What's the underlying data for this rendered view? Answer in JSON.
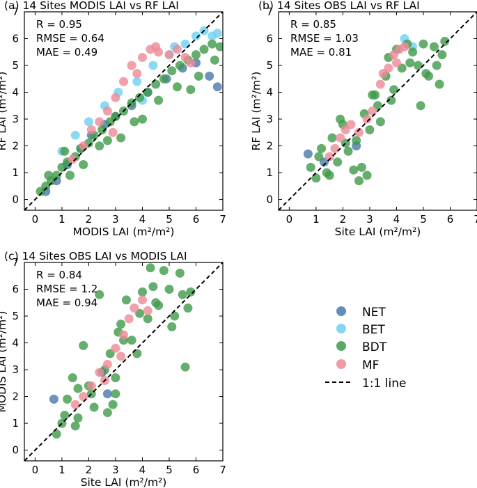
{
  "colors": {
    "NET": "#4a79ad",
    "BET": "#6fcff0",
    "BDT": "#3f9a4a",
    "MF": "#ec8a96",
    "one_to_one": "#000000"
  },
  "legend": {
    "entries": [
      "NET",
      "BET",
      "BDT",
      "MF"
    ],
    "line_label": "1:1 line"
  },
  "chart_data": [
    {
      "type": "scatter",
      "title": "(a) 14 Sites MODIS LAI vs RF LAI",
      "xlabel": "MODIS LAI (m²/m²)",
      "ylabel": "RF LAI (m²/m²)",
      "xlim": [
        -0.4,
        7
      ],
      "ylim": [
        -0.4,
        7
      ],
      "ticks": [
        0,
        1,
        2,
        3,
        4,
        5,
        6,
        7
      ],
      "stats": [
        "R = 0.95",
        "RMSE = 0.64",
        "MAE = 0.49"
      ],
      "series": [
        {
          "name": "NET",
          "x": [
            0.4,
            0.8,
            1.2,
            1.7,
            2.1,
            2.6,
            3.0,
            3.6,
            4.2,
            4.9,
            5.5,
            6.0,
            6.5,
            6.8
          ],
          "y": [
            0.3,
            0.7,
            1.3,
            1.9,
            2.4,
            2.8,
            3.1,
            3.5,
            4.0,
            4.5,
            4.9,
            5.1,
            4.6,
            4.2
          ]
        },
        {
          "name": "BET",
          "x": [
            1.0,
            1.5,
            2.0,
            2.6,
            3.1,
            3.8,
            4.4,
            5.0,
            5.6,
            6.0,
            6.3,
            6.6,
            6.8,
            5.2,
            4.0
          ],
          "y": [
            1.8,
            2.4,
            2.9,
            3.5,
            4.0,
            4.4,
            5.0,
            5.4,
            5.8,
            6.1,
            6.3,
            6.1,
            6.2,
            5.7,
            3.7
          ]
        },
        {
          "name": "BDT",
          "x": [
            0.2,
            0.4,
            0.6,
            0.8,
            1.0,
            1.2,
            1.5,
            1.7,
            2.0,
            2.2,
            2.5,
            2.8,
            3.0,
            3.3,
            3.6,
            3.9,
            4.2,
            4.5,
            4.8,
            5.1,
            5.4,
            5.7,
            6.0,
            6.3,
            6.6,
            6.9,
            1.3,
            1.8,
            2.4,
            3.2,
            4.0,
            4.6,
            5.3,
            6.1,
            6.7,
            0.5,
            1.1,
            2.7,
            3.7,
            5.8
          ],
          "y": [
            0.3,
            0.5,
            0.7,
            0.9,
            1.2,
            1.4,
            1.6,
            1.9,
            2.1,
            2.4,
            2.6,
            2.9,
            3.1,
            3.3,
            3.6,
            3.8,
            4.0,
            4.3,
            4.5,
            4.8,
            5.0,
            5.2,
            5.4,
            5.6,
            5.8,
            5.7,
            0.9,
            1.3,
            2.0,
            2.3,
            3.0,
            3.7,
            4.2,
            4.6,
            5.2,
            0.9,
            1.8,
            2.2,
            2.9,
            4.1
          ]
        },
        {
          "name": "MF",
          "x": [
            1.4,
            1.8,
            2.1,
            2.4,
            2.7,
            3.0,
            3.3,
            3.6,
            4.0,
            4.3,
            4.6,
            5.0,
            5.3,
            5.6,
            3.8,
            4.5,
            5.8,
            2.9
          ],
          "y": [
            1.5,
            2.0,
            2.6,
            2.9,
            3.3,
            3.8,
            4.4,
            5.0,
            5.3,
            5.6,
            5.5,
            5.4,
            5.6,
            5.3,
            4.7,
            5.7,
            5.1,
            2.5
          ]
        }
      ]
    },
    {
      "type": "scatter",
      "title": "(b) 14 Sites OBS LAI vs RF LAI",
      "xlabel": "Site LAI (m²/m²)",
      "ylabel": "RF LAI (m²/m²)",
      "xlim": [
        -0.4,
        7
      ],
      "ylim": [
        -0.4,
        7
      ],
      "ticks": [
        0,
        1,
        2,
        3,
        4,
        5,
        6,
        7
      ],
      "stats": [
        "R = 0.85",
        "RMSE = 1.03",
        "MAE = 0.81"
      ],
      "series": [
        {
          "name": "NET",
          "x": [
            0.7,
            2.5,
            1.3
          ],
          "y": [
            1.7,
            2.0,
            1.4
          ]
        },
        {
          "name": "BET",
          "x": [
            4.3,
            4.6
          ],
          "y": [
            6.0,
            5.7
          ]
        },
        {
          "name": "BDT",
          "x": [
            0.8,
            1.0,
            1.2,
            1.4,
            1.6,
            1.8,
            2.0,
            2.2,
            2.4,
            2.6,
            2.8,
            3.0,
            3.2,
            3.4,
            3.6,
            3.8,
            4.0,
            4.2,
            4.4,
            4.6,
            4.8,
            5.0,
            5.2,
            5.4,
            5.6,
            5.8,
            1.1,
            1.5,
            2.1,
            2.7,
            3.3,
            3.9,
            4.5,
            5.1,
            5.7,
            2.9,
            3.1,
            2.5,
            1.9,
            4.9,
            5.5,
            3.7
          ],
          "y": [
            1.2,
            0.8,
            1.9,
            1.0,
            2.3,
            1.4,
            2.8,
            1.8,
            1.1,
            0.7,
            3.2,
            2.6,
            3.9,
            2.9,
            4.6,
            3.7,
            5.6,
            4.9,
            5.8,
            5.5,
            5.0,
            5.8,
            4.6,
            5.7,
            4.3,
            5.9,
            1.6,
            0.9,
            2.1,
            1.2,
            3.5,
            4.1,
            5.1,
            4.7,
            5.4,
            0.9,
            3.9,
            2.2,
            3.0,
            3.5,
            5.0,
            5.3
          ]
        },
        {
          "name": "MF",
          "x": [
            1.5,
            1.7,
            1.9,
            2.1,
            2.3,
            2.6,
            2.9,
            3.1,
            3.4,
            3.7,
            3.9,
            4.1,
            4.3,
            3.5,
            4.0
          ],
          "y": [
            1.6,
            1.9,
            2.3,
            2.6,
            2.8,
            2.5,
            3.0,
            3.3,
            4.3,
            4.9,
            5.4,
            5.6,
            5.7,
            4.7,
            5.1
          ]
        }
      ]
    },
    {
      "type": "scatter",
      "title": "(c) 14 Sites OBS LAI vs MODIS LAI",
      "xlabel": "Site LAI (m²/m²)",
      "ylabel": "MODIS LAI (m²/m²)",
      "xlim": [
        -0.4,
        7
      ],
      "ylim": [
        -0.4,
        7
      ],
      "ticks": [
        0,
        1,
        2,
        3,
        4,
        5,
        6,
        7
      ],
      "stats": [
        "R = 0.84",
        "RMSE = 1.2",
        "MAE = 0.94"
      ],
      "series": [
        {
          "name": "NET",
          "x": [
            0.7,
            2.5,
            2.7
          ],
          "y": [
            1.9,
            2.9,
            2.1
          ]
        },
        {
          "name": "BET",
          "x": [],
          "y": []
        },
        {
          "name": "BDT",
          "x": [
            0.8,
            1.0,
            1.2,
            1.4,
            1.6,
            1.8,
            2.0,
            2.2,
            2.4,
            2.6,
            2.8,
            3.0,
            3.2,
            3.4,
            3.6,
            3.8,
            4.0,
            4.2,
            4.4,
            4.6,
            4.8,
            5.0,
            5.2,
            5.4,
            5.6,
            5.8,
            1.1,
            1.5,
            2.1,
            2.7,
            3.3,
            3.9,
            4.5,
            5.1,
            5.7,
            2.9,
            3.1,
            1.6,
            5.5,
            4.3,
            3.0
          ],
          "y": [
            0.6,
            1.0,
            1.9,
            2.7,
            1.2,
            3.9,
            2.4,
            1.6,
            5.8,
            3.0,
            3.6,
            2.7,
            4.7,
            5.6,
            4.1,
            3.6,
            5.9,
            4.9,
            6.1,
            5.4,
            6.7,
            6.0,
            5.0,
            6.6,
            3.1,
            5.9,
            1.3,
            0.9,
            2.1,
            1.4,
            4.1,
            5.1,
            5.5,
            4.6,
            5.3,
            1.7,
            4.4,
            2.3,
            5.8,
            6.8,
            2.1
          ]
        },
        {
          "name": "MF",
          "x": [
            1.5,
            1.8,
            2.1,
            2.4,
            2.7,
            3.0,
            3.3,
            3.5,
            3.7,
            4.0,
            4.2,
            3.2,
            2.6
          ],
          "y": [
            1.7,
            2.0,
            2.4,
            2.9,
            3.2,
            3.8,
            4.3,
            4.9,
            5.3,
            5.6,
            5.2,
            3.5,
            2.6
          ]
        }
      ]
    }
  ]
}
